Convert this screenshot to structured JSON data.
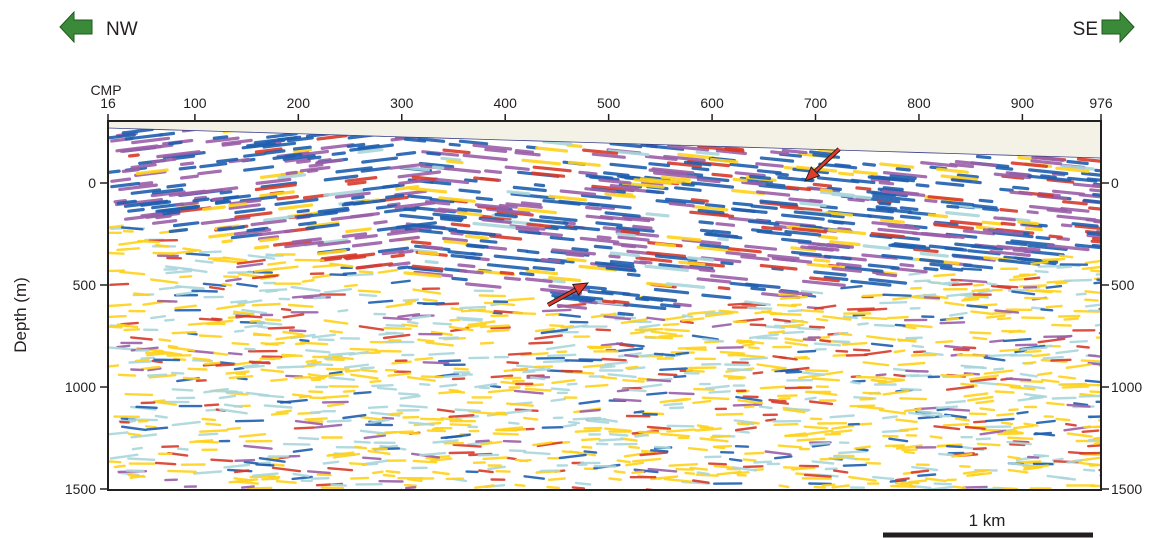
{
  "direction": {
    "left_label": "NW",
    "right_label": "SE",
    "arrow_color": "#3a8a3a"
  },
  "top_axis": {
    "label": "CMP",
    "ticks": [
      "16",
      "100",
      "200",
      "300",
      "400",
      "500",
      "600",
      "700",
      "800",
      "900",
      "976"
    ],
    "cmp_values": [
      16,
      100,
      200,
      300,
      400,
      500,
      600,
      700,
      800,
      900,
      976
    ]
  },
  "left_axis": {
    "label": "Depth (m)",
    "ticks": [
      "0",
      "500",
      "1000",
      "1500"
    ],
    "values": [
      0,
      500,
      1000,
      1500
    ]
  },
  "right_axis": {
    "ticks": [
      "0",
      "500",
      "1000",
      "1500"
    ],
    "values": [
      0,
      500,
      1000,
      1500
    ]
  },
  "scale_bar": {
    "label": "1 km"
  },
  "colors": {
    "sky": "#f4f1e6",
    "blue": "#1f5fb0",
    "purple": "#9b5fa8",
    "red": "#d83a2a",
    "yellow": "#ffd21a",
    "cyan": "#a9d6dc",
    "annotation_arrow": "#e23b2b"
  },
  "annotations": [
    {
      "id": "arrow-upper",
      "cmp": 690,
      "depth": -10
    },
    {
      "id": "arrow-lower",
      "cmp": 480,
      "depth": 490
    }
  ]
}
